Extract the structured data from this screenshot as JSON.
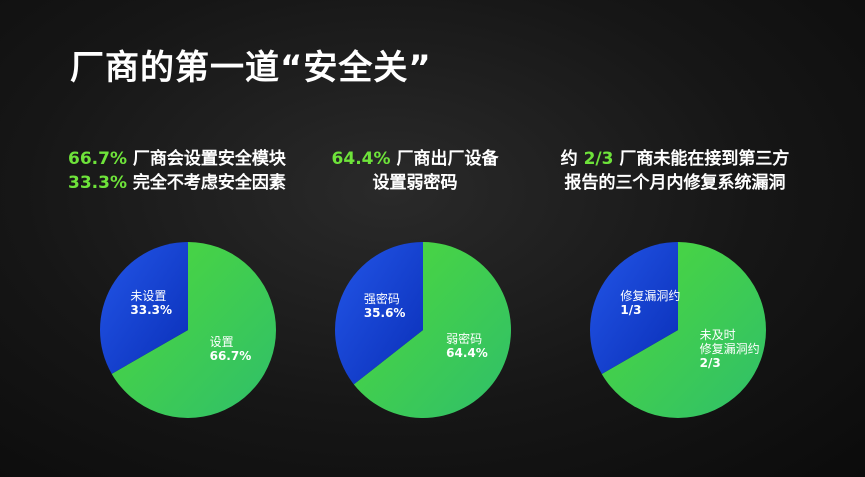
{
  "title": "厂商的第一道“安全关”",
  "colors": {
    "green_start": "#4fd93a",
    "green_end": "#2fbf6a",
    "blue_start": "#2356e8",
    "blue_end": "#0a2fb8",
    "highlight": "#6ee33a"
  },
  "captions": [
    {
      "lines": [
        {
          "hl": "66.7%",
          "text": " 厂商会设置安全模块"
        },
        {
          "hl": "33.3%",
          "text": " 完全不考虑安全因素"
        }
      ]
    },
    {
      "lines": [
        {
          "hl": "64.4%",
          "text": " 厂商出厂设备"
        },
        {
          "hl": "",
          "text": "设置弱密码"
        }
      ]
    },
    {
      "lines": [
        {
          "pre": "约 ",
          "hl": "2/3",
          "text": " 厂商未能在接到第三方"
        },
        {
          "hl": "",
          "text": "报告的三个月内修复系统漏洞"
        }
      ]
    }
  ],
  "chart_data": [
    {
      "type": "pie",
      "slices": [
        {
          "label": "设置",
          "value": 66.7,
          "value_label": "66.7%",
          "color": "green"
        },
        {
          "label": "未设置",
          "value": 33.3,
          "value_label": "33.3%",
          "color": "blue"
        }
      ]
    },
    {
      "type": "pie",
      "slices": [
        {
          "label": "弱密码",
          "value": 64.4,
          "value_label": "64.4%",
          "color": "green"
        },
        {
          "label": "强密码",
          "value": 35.6,
          "value_label": "35.6%",
          "color": "blue"
        }
      ]
    },
    {
      "type": "pie",
      "slices": [
        {
          "label": "未及时\n修复漏洞约",
          "value": 66.67,
          "value_label": "2/3",
          "color": "green"
        },
        {
          "label": "修复漏洞约",
          "value": 33.33,
          "value_label": "1/3",
          "color": "blue"
        }
      ]
    }
  ]
}
